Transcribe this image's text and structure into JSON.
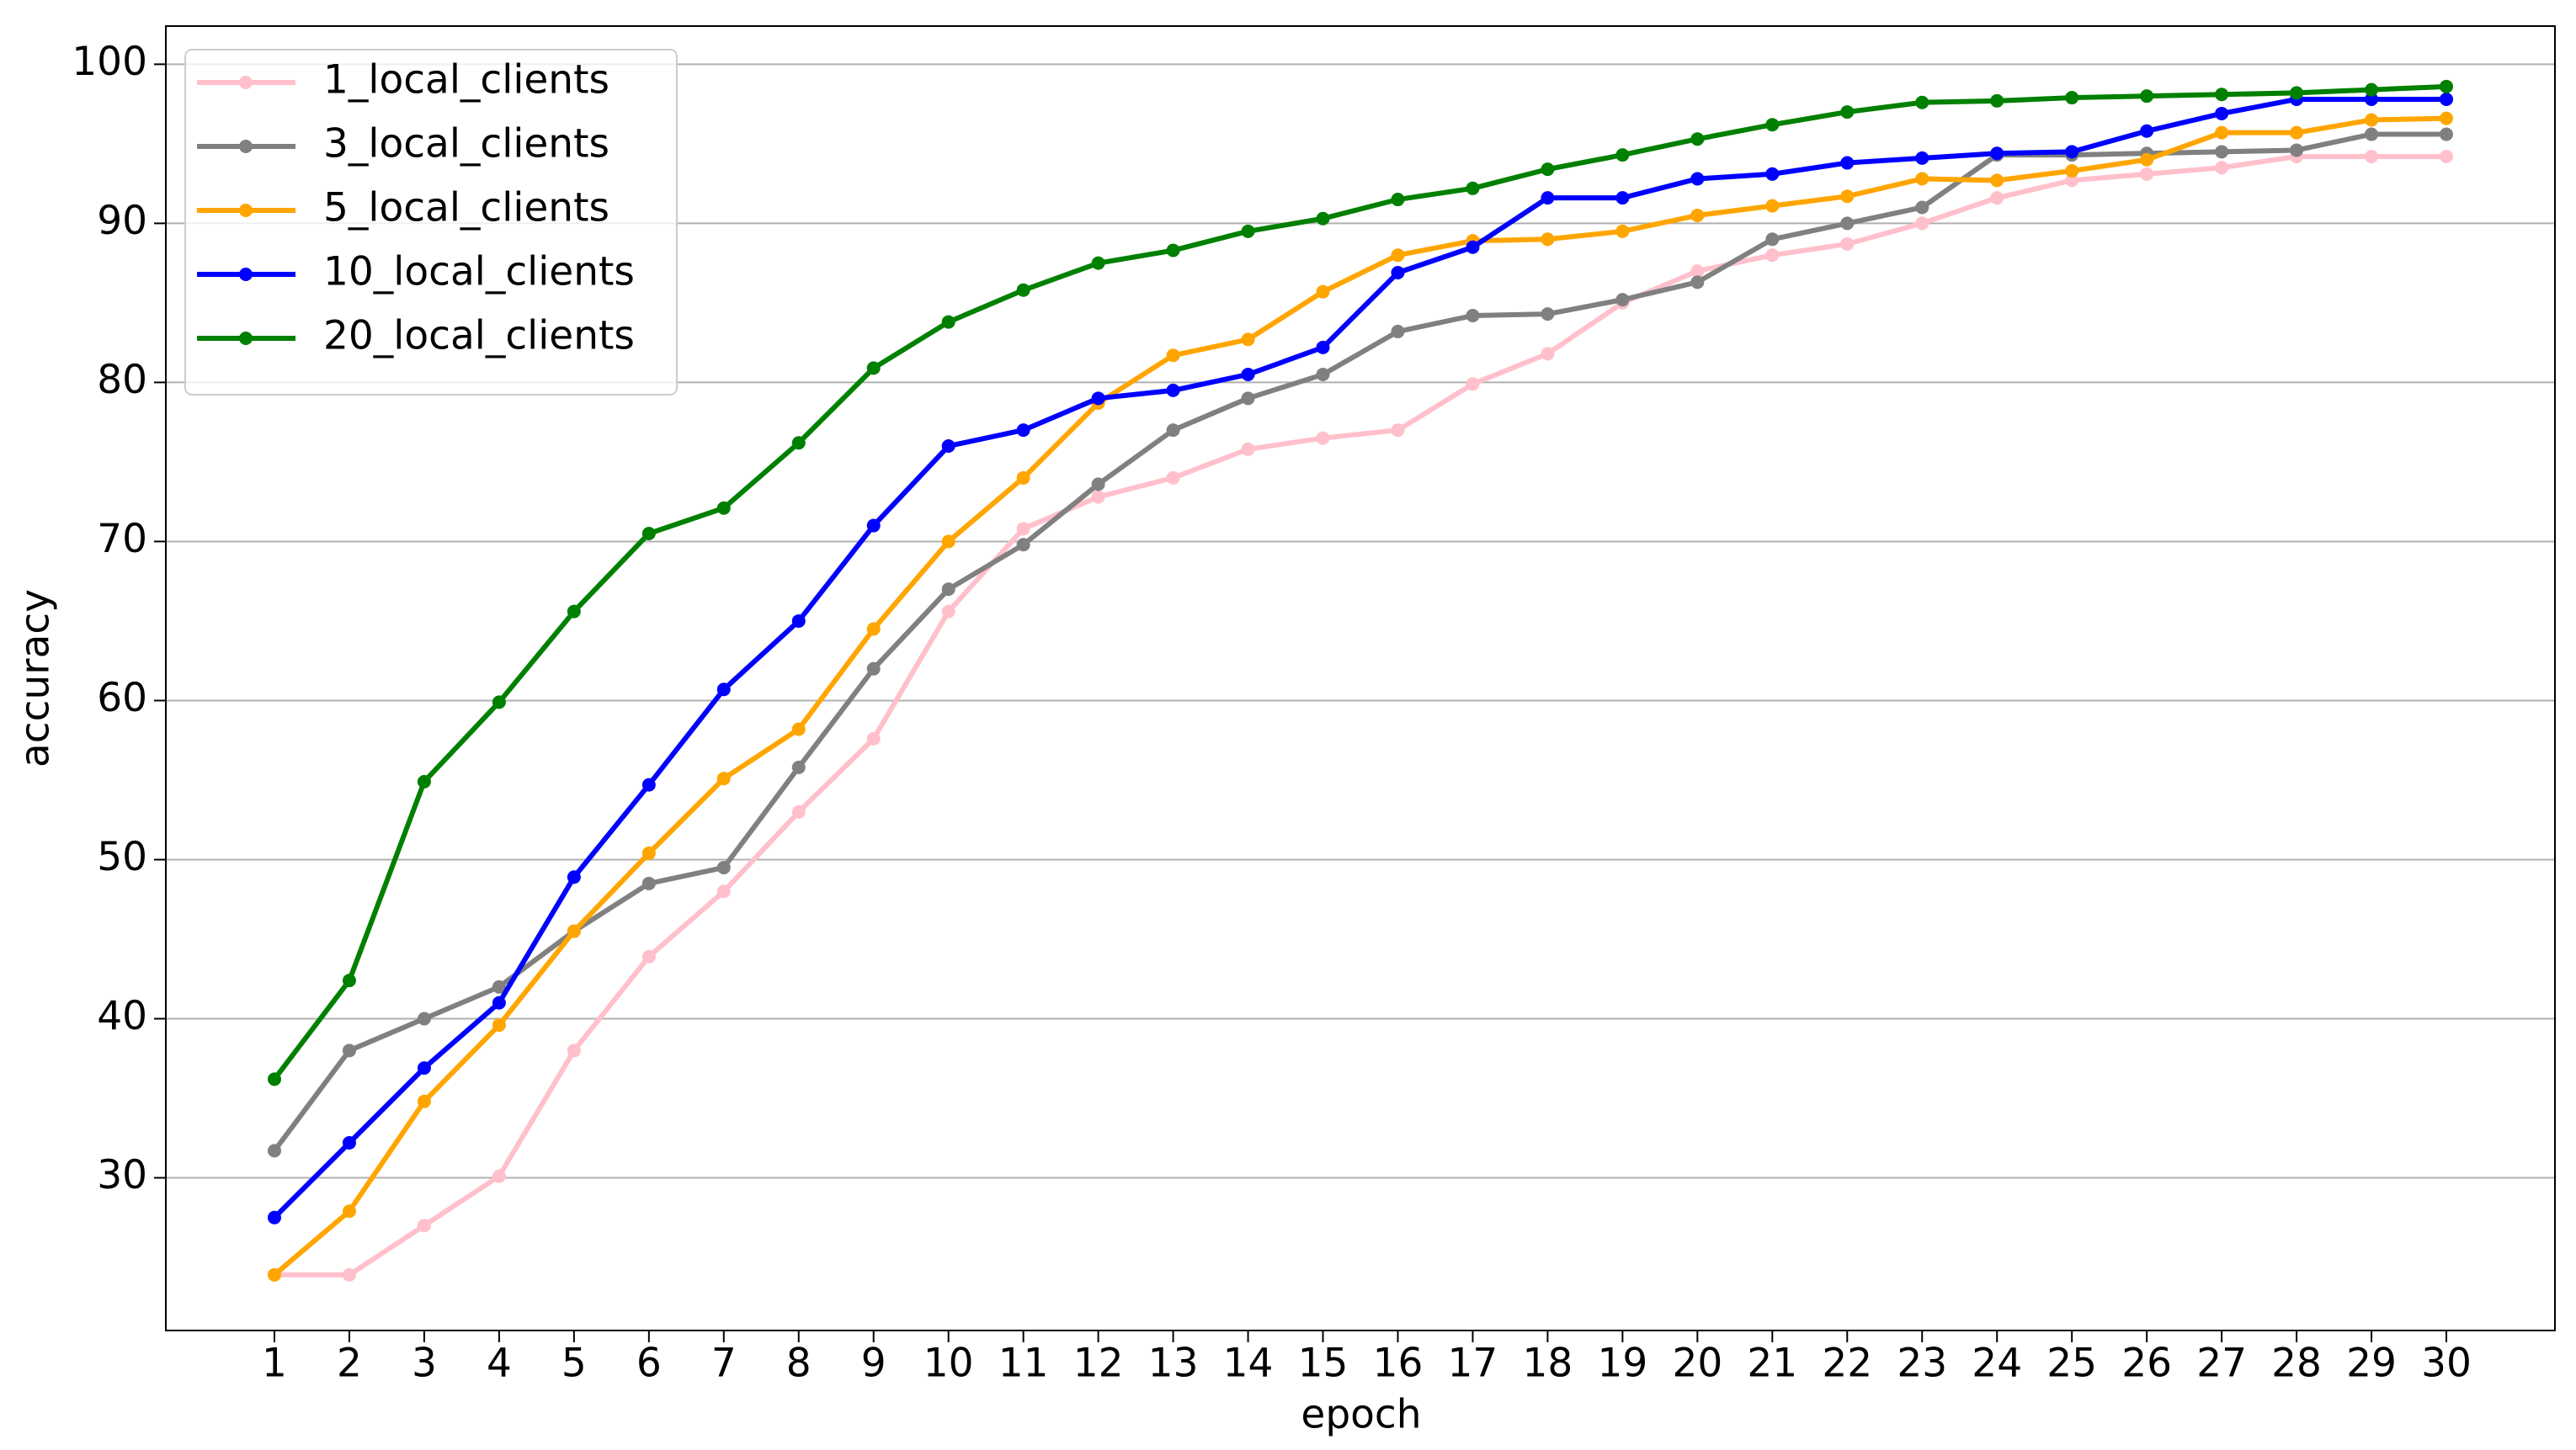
{
  "chart_data": {
    "type": "line",
    "x_label": "epoch",
    "y_label": "accuracy",
    "x": [
      1,
      2,
      3,
      4,
      5,
      6,
      7,
      8,
      9,
      10,
      11,
      12,
      13,
      14,
      15,
      16,
      17,
      18,
      19,
      20,
      21,
      22,
      23,
      24,
      25,
      26,
      27,
      28,
      29,
      30
    ],
    "xlim": [
      -0.45,
      31.45
    ],
    "xticks": [
      1,
      2,
      3,
      4,
      5,
      6,
      7,
      8,
      9,
      10,
      11,
      12,
      13,
      14,
      15,
      16,
      17,
      18,
      19,
      20,
      21,
      22,
      23,
      24,
      25,
      26,
      27,
      28,
      29,
      30
    ],
    "ylim": [
      20.4,
      102.4
    ],
    "yticks": [
      30,
      40,
      50,
      60,
      70,
      80,
      90,
      100
    ],
    "grid": "y",
    "legend": "upper left",
    "series": [
      {
        "name": "1_local_clients",
        "color": "#ffc0cb",
        "values": [
          23.9,
          23.9,
          27,
          30.1,
          38,
          43.9,
          48,
          53,
          57.6,
          65.6,
          70.8,
          72.8,
          74,
          75.8,
          76.5,
          77,
          79.9,
          81.8,
          85,
          87,
          88,
          88.7,
          90,
          91.6,
          92.7,
          93.1,
          93.5,
          94.2,
          94.2,
          94.2
        ]
      },
      {
        "name": "3_local_clients",
        "color": "#808080",
        "values": [
          31.7,
          38,
          40,
          42,
          45.5,
          48.5,
          49.5,
          55.8,
          62,
          67,
          69.8,
          73.6,
          77,
          79,
          80.5,
          83.2,
          84.2,
          84.3,
          85.2,
          86.3,
          89,
          90,
          91,
          94.3,
          94.3,
          94.4,
          94.5,
          94.6,
          95.6,
          95.6
        ]
      },
      {
        "name": "5_local_clients",
        "color": "#ffa500",
        "values": [
          23.9,
          27.9,
          34.8,
          39.6,
          45.5,
          50.4,
          55.1,
          58.2,
          64.5,
          70,
          74,
          78.7,
          81.7,
          82.7,
          85.7,
          88,
          88.9,
          89,
          89.5,
          90.5,
          91.1,
          91.7,
          92.8,
          92.7,
          93.3,
          94,
          95.7,
          95.7,
          96.5,
          96.6
        ]
      },
      {
        "name": "10_local_clients",
        "color": "#0000ff",
        "values": [
          27.5,
          32.2,
          36.9,
          41,
          48.9,
          54.7,
          60.7,
          65,
          71,
          76,
          77,
          79,
          79.5,
          80.5,
          82.2,
          86.9,
          88.5,
          91.6,
          91.6,
          92.8,
          93.1,
          93.8,
          94.1,
          94.4,
          94.5,
          95.8,
          96.9,
          97.8,
          97.8,
          97.8
        ]
      },
      {
        "name": "20_local_clients",
        "color": "#008000",
        "values": [
          36.2,
          42.4,
          54.9,
          59.9,
          65.6,
          70.5,
          72.1,
          76.2,
          80.9,
          83.8,
          85.8,
          87.5,
          88.3,
          89.5,
          90.3,
          91.5,
          92.2,
          93.4,
          94.3,
          95.3,
          96.2,
          97,
          97.6,
          97.7,
          97.9,
          98,
          98.1,
          98.2,
          98.4,
          98.6
        ]
      }
    ]
  }
}
